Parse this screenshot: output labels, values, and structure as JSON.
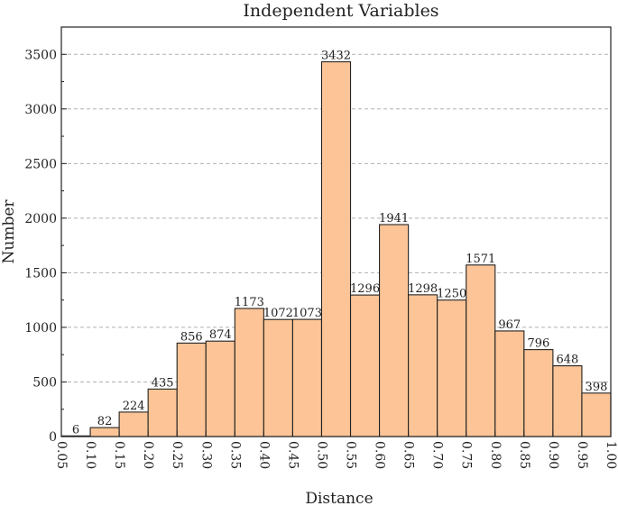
{
  "chart_data": {
    "type": "bar",
    "title": "Independent Variables",
    "xlabel": "Distance",
    "ylabel": "Number",
    "bin_edges": [
      0.05,
      0.1,
      0.15,
      0.2,
      0.25,
      0.3,
      0.35,
      0.4,
      0.45,
      0.5,
      0.55,
      0.6,
      0.65,
      0.7,
      0.75,
      0.8,
      0.85,
      0.9,
      0.95,
      1.0
    ],
    "x_tick_labels": [
      "0.05",
      "0.10",
      "0.15",
      "0.20",
      "0.25",
      "0.30",
      "0.35",
      "0.40",
      "0.45",
      "0.50",
      "0.55",
      "0.60",
      "0.65",
      "0.70",
      "0.75",
      "0.80",
      "0.85",
      "0.90",
      "0.95",
      "1.00"
    ],
    "values": [
      6,
      82,
      224,
      435,
      856,
      874,
      1173,
      1072,
      1073,
      3432,
      1296,
      1941,
      1298,
      1250,
      1571,
      967,
      796,
      648,
      398
    ],
    "ylim": [
      0,
      3750
    ],
    "y_ticks": [
      0,
      500,
      1000,
      1500,
      2000,
      2500,
      3000,
      3500
    ],
    "y_tick_labels": [
      "0",
      "500",
      "1000",
      "1500",
      "2000",
      "2500",
      "3000",
      "3500"
    ],
    "bar_color": "#fdc597",
    "bar_edge_color": "#222222",
    "grid": "horizontal-dashed"
  }
}
